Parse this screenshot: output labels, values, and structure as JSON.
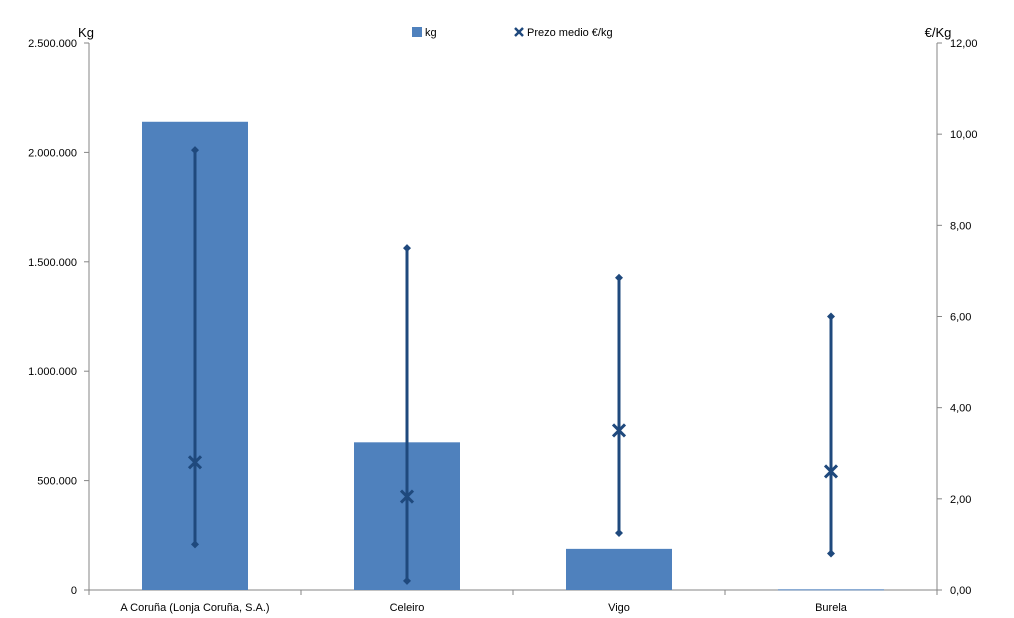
{
  "chart_data": {
    "type": "bar",
    "categories": [
      "A Coruña (Lonja Coruña, S.A.)",
      "Celeiro",
      "Vigo",
      "Burela"
    ],
    "kg": [
      2140000,
      675000,
      188000,
      3000
    ],
    "price_min": [
      1.0,
      0.2,
      1.25,
      0.8
    ],
    "price_max": [
      9.65,
      7.5,
      6.85,
      6.0
    ],
    "price_avg": [
      2.8,
      2.05,
      3.5,
      2.6
    ],
    "y_left_label": "Kg",
    "y_right_label": "€/Kg",
    "y_left_ticks": [
      "0",
      "500.000",
      "1.000.000",
      "1.500.000",
      "2.000.000",
      "2.500.000"
    ],
    "y_right_ticks": [
      "0,00",
      "2,00",
      "4,00",
      "6,00",
      "8,00",
      "10,00",
      "12,00"
    ],
    "y_left_range": [
      0,
      2500000
    ],
    "y_right_range": [
      0,
      12
    ],
    "legend": {
      "bar_label": "kg",
      "marker_label": "Prezo medio €/kg",
      "placement": "top-center"
    },
    "colors": {
      "bar": "#4f81bd",
      "price": "#1f497d",
      "axis": "#868686"
    }
  }
}
